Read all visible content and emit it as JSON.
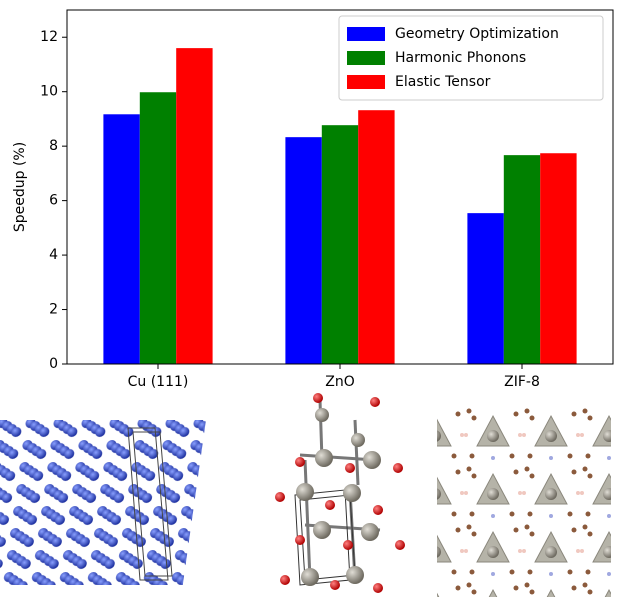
{
  "chart_data": {
    "type": "bar",
    "y_label": "Speedup (%)",
    "categories": [
      "Cu (111)",
      "ZnO",
      "ZIF-8"
    ],
    "series": [
      {
        "name": "Geometry Optimization",
        "color": "#0000ff",
        "values": [
          9.17,
          8.33,
          5.54
        ]
      },
      {
        "name": "Harmonic Phonons",
        "color": "#008000",
        "values": [
          9.98,
          8.77,
          7.67
        ]
      },
      {
        "name": "Elastic Tensor",
        "color": "#ff0000",
        "values": [
          11.6,
          9.32,
          7.74
        ]
      }
    ],
    "ylim": [
      0,
      13
    ],
    "yticks": [
      0,
      2,
      4,
      6,
      8,
      10,
      12
    ],
    "legend": "upper right"
  }
}
